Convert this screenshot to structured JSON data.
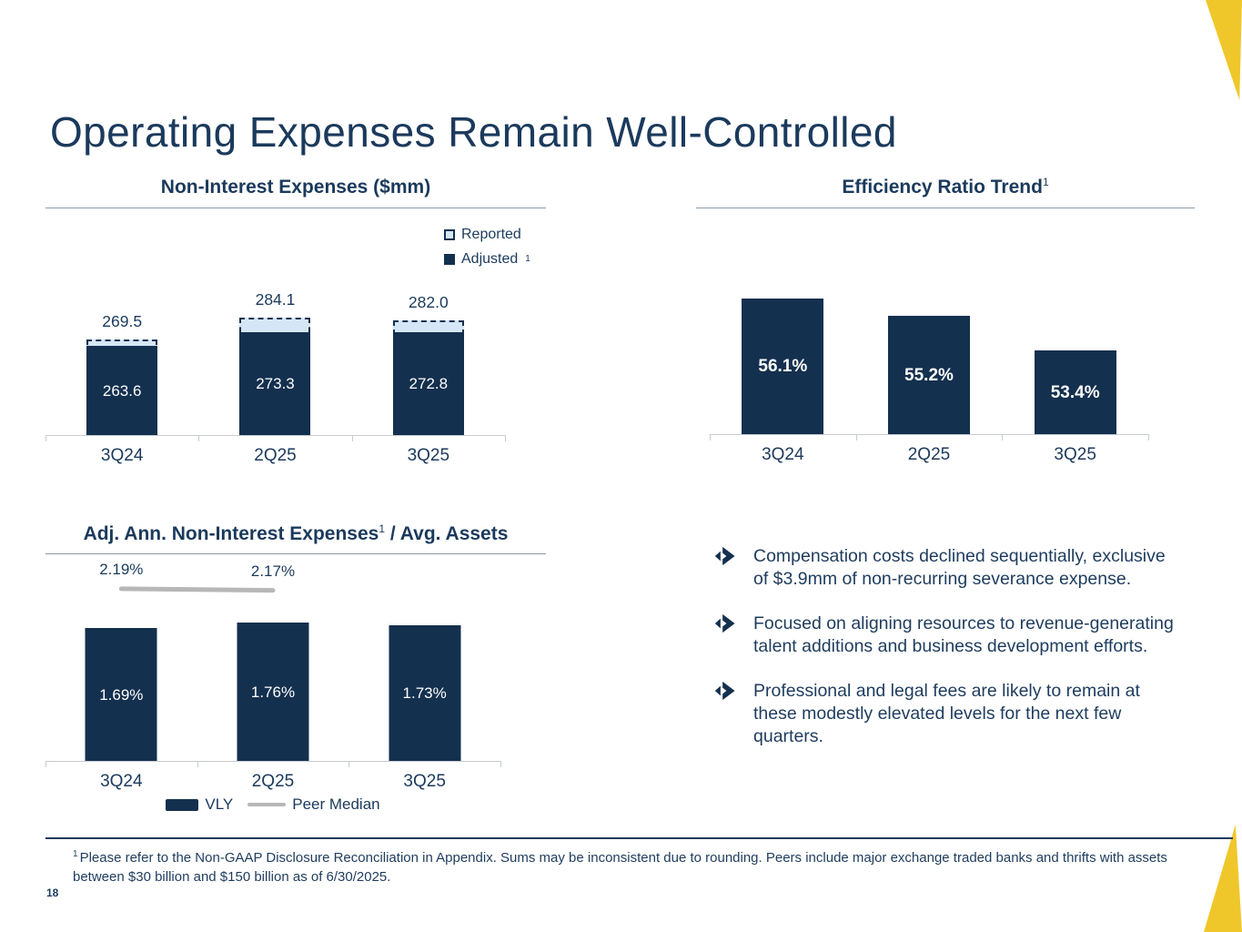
{
  "slide": {
    "title": "Operating Expenses Remain Well-Controlled",
    "page_number": "18",
    "footnote_sup": "1",
    "footnote": "Please refer to the Non-GAAP Disclosure Reconciliation in Appendix. Sums may be inconsistent due to rounding.  Peers include major exchange traded banks and thrifts with assets between $30 billion and $150 billion as of 6/30/2025."
  },
  "colors": {
    "navy_text": "#1B3A5C",
    "bar_navy": "#14304F",
    "reported_light_blue": "#D5E6F7",
    "accent_yellow": "#EFC72B",
    "axis_gray": "#C8CCD0",
    "peer_median_gray": "#B7B7B7",
    "title_rule_gray": "#8A9AAE"
  },
  "chart_data": [
    {
      "id": "non-interest-expenses",
      "type": "bar",
      "title": "Non-Interest Expenses ($mm)",
      "categories": [
        "3Q24",
        "2Q25",
        "3Q25"
      ],
      "series": [
        {
          "name": "Reported",
          "values": [
            269.5,
            284.1,
            282.0
          ],
          "labels": [
            "269.5",
            "284.1",
            "282.0"
          ],
          "style": "dashed-light-blue-outline"
        },
        {
          "name": "Adjusted",
          "name_sup": "1",
          "values": [
            263.6,
            273.3,
            272.8
          ],
          "labels": [
            "263.6",
            "273.3",
            "272.8"
          ],
          "style": "solid-navy"
        }
      ],
      "ylim": [
        205,
        290
      ],
      "legend_position": "top-right",
      "grid": false
    },
    {
      "id": "efficiency-ratio-trend",
      "type": "bar",
      "title": "Efficiency Ratio Trend",
      "title_sup": "1",
      "categories": [
        "3Q24",
        "2Q25",
        "3Q25"
      ],
      "values": [
        56.1,
        55.2,
        53.4
      ],
      "labels": [
        "56.1%",
        "55.2%",
        "53.4%"
      ],
      "ylim": [
        49,
        58
      ],
      "legend_position": "none",
      "grid": false
    },
    {
      "id": "adj-ann-non-interest-expenses-avg-assets",
      "type": "bar+line",
      "title": "Adj. Ann. Non-Interest Expenses",
      "title_sup": "1",
      "title_suffix": " / Avg. Assets",
      "categories": [
        "3Q24",
        "2Q25",
        "3Q25"
      ],
      "series": [
        {
          "name": "VLY",
          "type": "bar",
          "values": [
            1.69,
            1.76,
            1.73
          ],
          "labels": [
            "1.69%",
            "1.76%",
            "1.73%"
          ]
        },
        {
          "name": "Peer Median",
          "type": "line",
          "values": [
            2.19,
            2.17,
            null
          ],
          "labels": [
            "2.19%",
            "2.17%",
            null
          ]
        }
      ],
      "ylim": [
        0,
        2.5
      ],
      "legend_position": "bottom",
      "grid": false
    }
  ],
  "bullets": [
    "Compensation costs declined sequentially, exclusive of $3.9mm of non-recurring severance expense.",
    "Focused on aligning resources to revenue-generating talent additions and business development efforts.",
    "Professional and legal fees are likely to remain at these modestly elevated levels for the next few quarters."
  ]
}
